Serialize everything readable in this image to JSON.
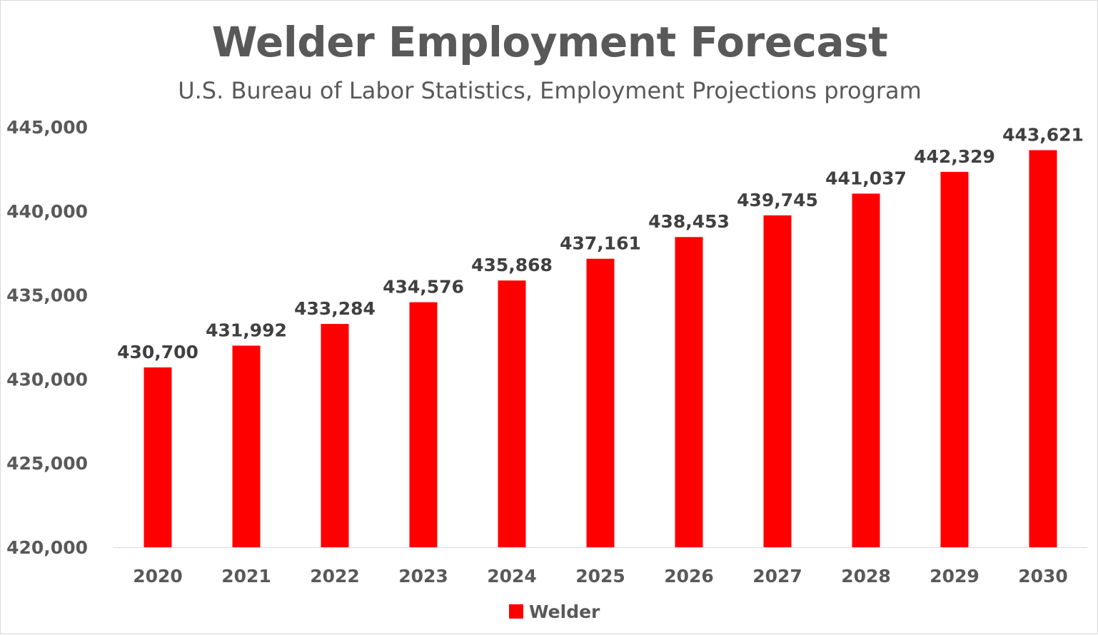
{
  "chart_data": {
    "type": "bar",
    "title": "Welder Employment Forecast",
    "subtitle": "U.S. Bureau of Labor Statistics, Employment Projections program",
    "xlabel": "",
    "ylabel": "",
    "categories": [
      "2020",
      "2021",
      "2022",
      "2023",
      "2024",
      "2025",
      "2026",
      "2027",
      "2028",
      "2029",
      "2030"
    ],
    "series": [
      {
        "name": "Welder",
        "color": "#ff0000",
        "values": [
          430700,
          431992,
          433284,
          434576,
          435868,
          437161,
          438453,
          439745,
          441037,
          442329,
          443621
        ],
        "data_labels": [
          "430,700",
          "431,992",
          "433,284",
          "434,576",
          "435,868",
          "437,161",
          "438,453",
          "439,745",
          "441,037",
          "442,329",
          "443,621"
        ]
      }
    ],
    "ylim": [
      420000,
      445000
    ],
    "yticks": [
      420000,
      425000,
      430000,
      435000,
      440000,
      445000
    ],
    "ytick_labels": [
      "420,000",
      "425,000",
      "430,000",
      "435,000",
      "440,000",
      "445,000"
    ],
    "grid": false,
    "legend_position": "bottom"
  }
}
